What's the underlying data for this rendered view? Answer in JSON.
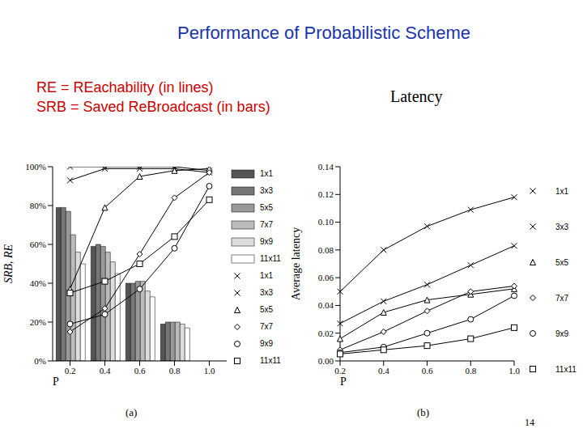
{
  "slide": {
    "title": "Performance of Probabilistic Scheme",
    "notes": [
      "RE = REachability (in lines)",
      "SRB = Saved ReBroadcast (in bars)"
    ],
    "page": "14"
  },
  "chart_data": [
    {
      "type": "bar",
      "caption": "(a)",
      "x_label": "P",
      "y_label": "SRB, RE",
      "categories": [
        "0.2",
        "0.4",
        "0.6",
        "0.8",
        "1.0"
      ],
      "ylim": [
        0,
        100
      ],
      "yticks": [
        {
          "value": 0,
          "label": "0%"
        },
        {
          "value": 20,
          "label": "20%"
        },
        {
          "value": 40,
          "label": "40%"
        },
        {
          "value": 60,
          "label": "60%"
        },
        {
          "value": 80,
          "label": "80%"
        },
        {
          "value": 100,
          "label": "100%"
        }
      ],
      "grid": false,
      "legend": "right",
      "series": [
        {
          "name": "1x1",
          "type": "bar",
          "color": "#555555",
          "values": [
            79,
            59,
            40,
            19,
            0
          ]
        },
        {
          "name": "3x3",
          "type": "bar",
          "color": "#777777",
          "values": [
            79,
            60,
            40,
            20,
            0
          ]
        },
        {
          "name": "5x5",
          "type": "bar",
          "color": "#999999",
          "values": [
            77,
            59,
            41,
            20,
            0
          ]
        },
        {
          "name": "7x7",
          "type": "bar",
          "color": "#bbbbbb",
          "values": [
            65,
            56,
            41,
            20,
            0
          ]
        },
        {
          "name": "9x9",
          "type": "bar",
          "color": "#dddddd",
          "values": [
            56,
            51,
            36,
            19,
            0
          ]
        },
        {
          "name": "11x11",
          "type": "bar",
          "color": "#ffffff",
          "values": [
            50,
            45,
            33,
            17,
            0
          ]
        },
        {
          "name": "1x1",
          "type": "line",
          "color": "#000000",
          "marker": "x",
          "values": [
            100,
            100,
            100,
            100,
            98
          ]
        },
        {
          "name": "3x3",
          "type": "line",
          "color": "#000000",
          "marker": "x",
          "values": [
            93,
            99,
            99,
            99,
            97
          ]
        },
        {
          "name": "5x5",
          "type": "line",
          "color": "#000000",
          "marker": "triangle",
          "values": [
            37,
            79,
            95,
            98,
            99
          ]
        },
        {
          "name": "7x7",
          "type": "line",
          "color": "#000000",
          "marker": "diamond",
          "values": [
            15,
            27,
            55,
            84,
            97
          ]
        },
        {
          "name": "9x9",
          "type": "line",
          "color": "#000000",
          "marker": "circle",
          "values": [
            19,
            24,
            37,
            58,
            90
          ]
        },
        {
          "name": "11x11",
          "type": "line",
          "color": "#000000",
          "marker": "square",
          "values": [
            35,
            41,
            50,
            64,
            83
          ]
        }
      ]
    },
    {
      "type": "line",
      "title": "Latency",
      "caption": "(b)",
      "x_label": "P",
      "y_label": "Average latency",
      "categories": [
        "0.2",
        "0.4",
        "0.6",
        "0.8",
        "1.0"
      ],
      "ylim": [
        0,
        0.14
      ],
      "yticks": [
        {
          "value": 0,
          "label": "0.00"
        },
        {
          "value": 0.02,
          "label": "0.02"
        },
        {
          "value": 0.04,
          "label": "0.04"
        },
        {
          "value": 0.06,
          "label": "0.06"
        },
        {
          "value": 0.08,
          "label": "0.08"
        },
        {
          "value": 0.1,
          "label": "0.10"
        },
        {
          "value": 0.12,
          "label": "0.12"
        },
        {
          "value": 0.14,
          "label": "0.14"
        }
      ],
      "grid": false,
      "legend": "right",
      "series": [
        {
          "name": "1x1",
          "color": "#000000",
          "marker": "x",
          "values": [
            0.05,
            0.08,
            0.097,
            0.109,
            0.118
          ]
        },
        {
          "name": "3x3",
          "color": "#000000",
          "marker": "x",
          "values": [
            0.027,
            0.043,
            0.055,
            0.069,
            0.083
          ]
        },
        {
          "name": "5x5",
          "color": "#000000",
          "marker": "triangle",
          "values": [
            0.016,
            0.035,
            0.044,
            0.048,
            0.052
          ]
        },
        {
          "name": "7x7",
          "color": "#000000",
          "marker": "diamond",
          "values": [
            0.008,
            0.021,
            0.036,
            0.05,
            0.054
          ]
        },
        {
          "name": "9x9",
          "color": "#000000",
          "marker": "circle",
          "values": [
            0.006,
            0.01,
            0.02,
            0.03,
            0.047
          ]
        },
        {
          "name": "11x11",
          "color": "#000000",
          "marker": "square",
          "values": [
            0.005,
            0.008,
            0.011,
            0.016,
            0.024
          ]
        }
      ]
    }
  ]
}
